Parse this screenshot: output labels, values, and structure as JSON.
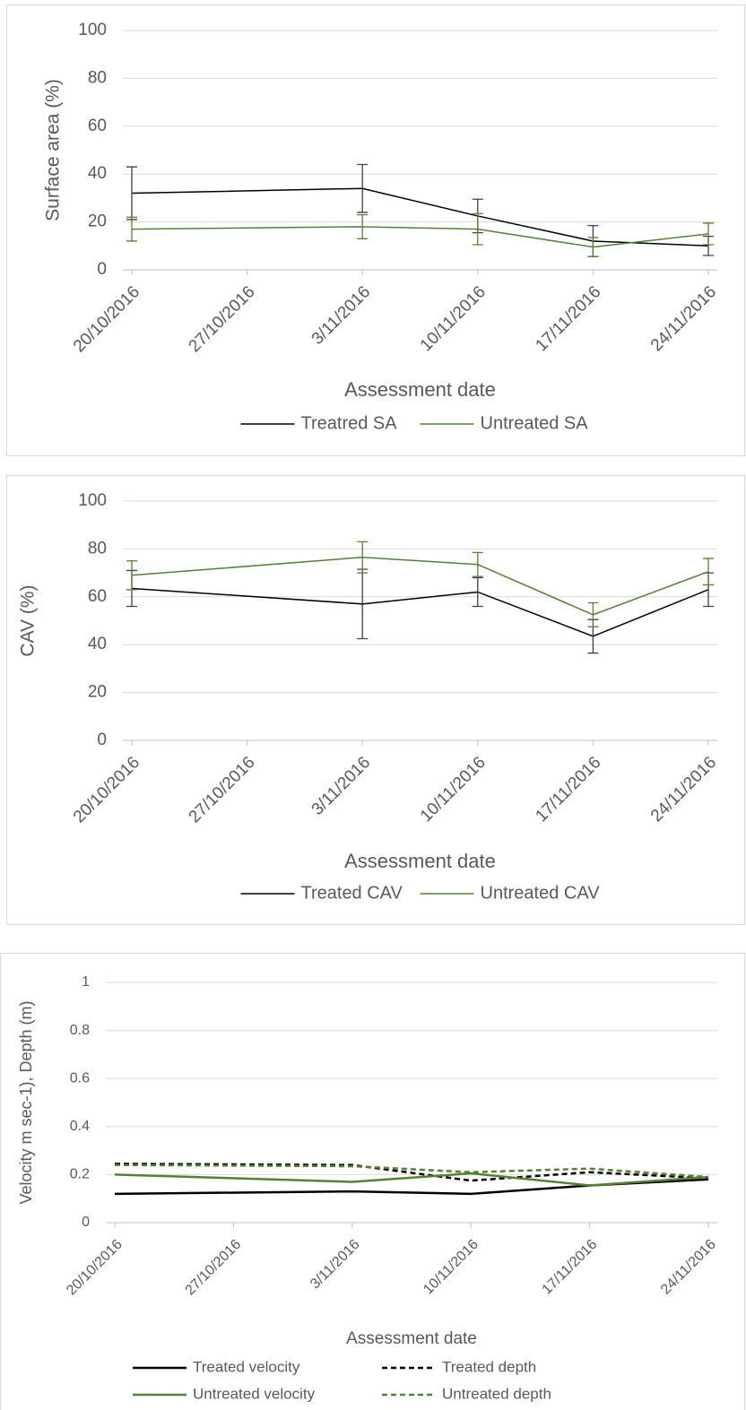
{
  "chart_data": [
    {
      "type": "line",
      "ylabel": "Surface area (%)",
      "xlabel": "Assessment date",
      "x": [
        "20/10/2016",
        "3/11/2016",
        "10/11/2016",
        "17/11/2016",
        "24/11/2016"
      ],
      "xlim": [
        "20/10/2016",
        "24/11/2016"
      ],
      "xticks": [
        "20/10/2016",
        "27/10/2016",
        "3/11/2016",
        "10/11/2016",
        "17/11/2016",
        "24/11/2016"
      ],
      "ylim": [
        0,
        100
      ],
      "yticks": [
        0,
        20,
        40,
        60,
        80,
        100
      ],
      "grid": true,
      "series": [
        {
          "name": "Treatred SA",
          "color": "#000000",
          "values": [
            32,
            34,
            22.5,
            12,
            10
          ],
          "errors": [
            11,
            10,
            7,
            6.5,
            4
          ]
        },
        {
          "name": "Untreated SA",
          "color": "#548235",
          "values": [
            17,
            18,
            17,
            9.5,
            15
          ],
          "errors": [
            5,
            5,
            6.5,
            4,
            4.5
          ]
        }
      ]
    },
    {
      "type": "line",
      "ylabel": "CAV (%)",
      "xlabel": "Assessment date",
      "x": [
        "20/10/2016",
        "3/11/2016",
        "10/11/2016",
        "17/11/2016",
        "24/11/2016"
      ],
      "xlim": [
        "20/10/2016",
        "24/11/2016"
      ],
      "xticks": [
        "20/10/2016",
        "27/10/2016",
        "3/11/2016",
        "10/11/2016",
        "17/11/2016",
        "24/11/2016"
      ],
      "ylim": [
        0,
        100
      ],
      "yticks": [
        0,
        20,
        40,
        60,
        80,
        100
      ],
      "grid": true,
      "series": [
        {
          "name": "Treated CAV",
          "color": "#000000",
          "values": [
            63.5,
            57,
            62,
            43.5,
            63
          ],
          "errors": [
            7.5,
            14.5,
            6,
            7,
            7
          ]
        },
        {
          "name": "Untreated CAV",
          "color": "#548235",
          "values": [
            69,
            76.5,
            73.5,
            52.5,
            70.5
          ],
          "errors": [
            6,
            6.5,
            5,
            5,
            5.5
          ]
        }
      ]
    },
    {
      "type": "line",
      "ylabel": "Velocity m sec-1), Depth (m)",
      "xlabel": "Assessment date",
      "x": [
        "20/10/2016",
        "3/11/2016",
        "10/11/2016",
        "17/11/2016",
        "24/11/2016"
      ],
      "xlim": [
        "20/10/2016",
        "24/11/2016"
      ],
      "xticks": [
        "20/10/2016",
        "27/10/2016",
        "3/11/2016",
        "10/11/2016",
        "17/11/2016",
        "24/11/2016"
      ],
      "ylim": [
        0,
        1
      ],
      "yticks": [
        0,
        0.2,
        0.4,
        0.6,
        0.8,
        1
      ],
      "grid": true,
      "series": [
        {
          "name": "Treated velocity",
          "color": "#000000",
          "style": "solid",
          "values": [
            0.12,
            0.13,
            0.12,
            0.155,
            0.18
          ]
        },
        {
          "name": "Treated depth",
          "color": "#000000",
          "style": "dashed",
          "values": [
            0.245,
            0.24,
            0.175,
            0.21,
            0.185
          ]
        },
        {
          "name": "Untreated velocity",
          "color": "#548235",
          "style": "solid",
          "values": [
            0.2,
            0.17,
            0.205,
            0.155,
            0.19
          ]
        },
        {
          "name": "Untreated depth",
          "color": "#548235",
          "style": "dashed",
          "values": [
            0.24,
            0.235,
            0.21,
            0.225,
            0.19
          ]
        }
      ]
    }
  ]
}
